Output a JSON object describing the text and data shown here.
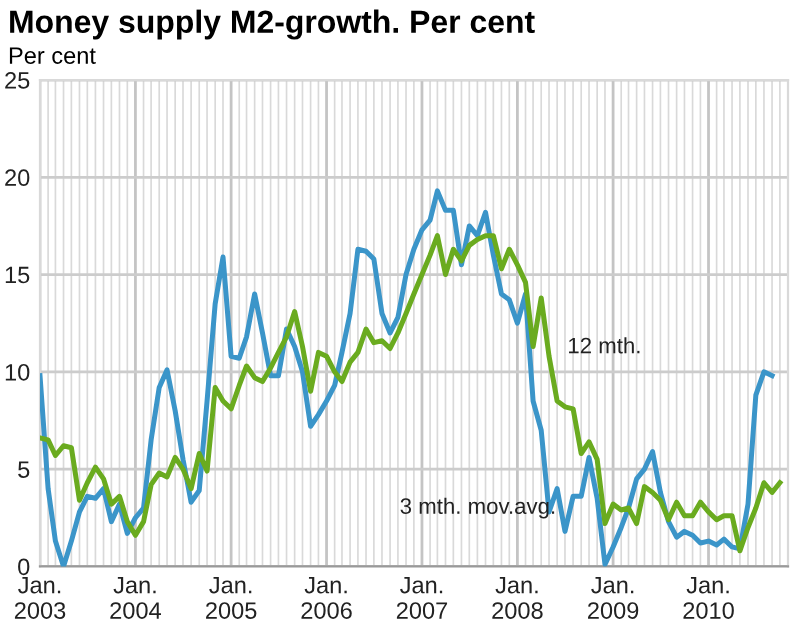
{
  "chart_data": {
    "type": "line",
    "title": "Money supply M2-growth. Per cent",
    "ylabel": "Per cent",
    "x": [
      "2003-01",
      "2003-02",
      "2003-03",
      "2003-04",
      "2003-05",
      "2003-06",
      "2003-07",
      "2003-08",
      "2003-09",
      "2003-10",
      "2003-11",
      "2003-12",
      "2004-01",
      "2004-02",
      "2004-03",
      "2004-04",
      "2004-05",
      "2004-06",
      "2004-07",
      "2004-08",
      "2004-09",
      "2004-10",
      "2004-11",
      "2004-12",
      "2005-01",
      "2005-02",
      "2005-03",
      "2005-04",
      "2005-05",
      "2005-06",
      "2005-07",
      "2005-08",
      "2005-09",
      "2005-10",
      "2005-11",
      "2005-12",
      "2006-01",
      "2006-02",
      "2006-03",
      "2006-04",
      "2006-05",
      "2006-06",
      "2006-07",
      "2006-08",
      "2006-09",
      "2006-10",
      "2006-11",
      "2006-12",
      "2007-01",
      "2007-02",
      "2007-03",
      "2007-04",
      "2007-05",
      "2007-06",
      "2007-07",
      "2007-08",
      "2007-09",
      "2007-10",
      "2007-11",
      "2007-12",
      "2008-01",
      "2008-02",
      "2008-03",
      "2008-04",
      "2008-05",
      "2008-06",
      "2008-07",
      "2008-08",
      "2008-09",
      "2008-10",
      "2008-11",
      "2008-12",
      "2009-01",
      "2009-02",
      "2009-03",
      "2009-04",
      "2009-05",
      "2009-06",
      "2009-07",
      "2009-08",
      "2009-09",
      "2009-10",
      "2009-11",
      "2009-12",
      "2010-01",
      "2010-02",
      "2010-03",
      "2010-04",
      "2010-05",
      "2010-06",
      "2010-07",
      "2010-08",
      "2010-09",
      "2010-10"
    ],
    "series": [
      {
        "name": "3 mth. mov.avg.",
        "color": "#3b95c9",
        "values": [
          9.8,
          4.0,
          1.3,
          0,
          1.3,
          2.8,
          3.6,
          3.5,
          4.0,
          2.3,
          3.2,
          1.7,
          2.5,
          3.0,
          6.5,
          9.2,
          10.1,
          8.0,
          5.5,
          3.3,
          3.9,
          8.5,
          13.5,
          15.9,
          10.8,
          10.7,
          11.8,
          14.0,
          12.0,
          9.8,
          9.8,
          12.2,
          11.3,
          10.0,
          7.2,
          7.8,
          8.5,
          9.3,
          11.0,
          13.0,
          16.3,
          16.2,
          15.8,
          13.0,
          12.0,
          12.8,
          15.0,
          16.3,
          17.3,
          17.8,
          19.3,
          18.3,
          18.3,
          15.5,
          17.5,
          17.0,
          18.2,
          16.0,
          14.0,
          13.7,
          12.5,
          14.0,
          8.5,
          7.0,
          2.8,
          4.0,
          1.8,
          3.6,
          3.6,
          5.6,
          3.5,
          0.1,
          1.0,
          2.0,
          3.0,
          4.5,
          5.0,
          5.9,
          3.8,
          2.3,
          1.5,
          1.8,
          1.6,
          1.2,
          1.3,
          1.1,
          1.4,
          1.0,
          0.9,
          3.2,
          8.8,
          10.0,
          9.8,
          null
        ]
      },
      {
        "name": "12 mth.",
        "color": "#6aab1f",
        "values": [
          6.6,
          6.5,
          5.7,
          6.2,
          6.1,
          3.4,
          4.3,
          5.1,
          4.5,
          3.2,
          3.6,
          2.3,
          1.6,
          2.3,
          4.2,
          4.8,
          4.6,
          5.6,
          5.0,
          4.0,
          5.8,
          4.9,
          9.2,
          8.5,
          8.1,
          9.3,
          10.3,
          9.7,
          9.5,
          10.2,
          11.0,
          11.8,
          13.1,
          11.3,
          9.0,
          11.0,
          10.8,
          10.0,
          9.5,
          10.5,
          11.0,
          12.2,
          11.5,
          11.6,
          11.2,
          12.0,
          13.0,
          14.0,
          15.0,
          16.0,
          17.0,
          15.0,
          16.3,
          15.7,
          16.5,
          16.8,
          17.0,
          17.0,
          15.3,
          16.3,
          15.5,
          14.6,
          11.3,
          13.8,
          10.8,
          8.5,
          8.2,
          8.1,
          5.8,
          6.4,
          5.5,
          2.2,
          3.2,
          2.9,
          3.0,
          2.2,
          4.1,
          3.8,
          3.4,
          2.4,
          3.3,
          2.6,
          2.6,
          3.3,
          2.8,
          2.4,
          2.6,
          2.6,
          0.8,
          2.0,
          3.0,
          4.3,
          3.8,
          4.3
        ]
      }
    ],
    "xlim": [
      "2003-01",
      "2010-11"
    ],
    "xticks": [
      {
        "value": "2003-01",
        "label": "Jan.\n2003"
      },
      {
        "value": "2003-02",
        "label": null
      },
      {
        "value": "2003-03",
        "label": null
      },
      {
        "value": "2003-04",
        "label": null
      },
      {
        "value": "2003-05",
        "label": null
      },
      {
        "value": "2003-06",
        "label": null
      },
      {
        "value": "2003-07",
        "label": null
      },
      {
        "value": "2003-08",
        "label": null
      },
      {
        "value": "2003-09",
        "label": null
      },
      {
        "value": "2003-10",
        "label": null
      },
      {
        "value": "2003-11",
        "label": null
      },
      {
        "value": "2003-12",
        "label": null
      },
      {
        "value": "2004-01",
        "label": "Jan.\n2004"
      },
      {
        "value": "2004-02",
        "label": null
      },
      {
        "value": "2004-03",
        "label": null
      },
      {
        "value": "2004-04",
        "label": null
      },
      {
        "value": "2004-05",
        "label": null
      },
      {
        "value": "2004-06",
        "label": null
      },
      {
        "value": "2004-07",
        "label": null
      },
      {
        "value": "2004-08",
        "label": null
      },
      {
        "value": "2004-09",
        "label": null
      },
      {
        "value": "2004-10",
        "label": null
      },
      {
        "value": "2004-11",
        "label": null
      },
      {
        "value": "2004-12",
        "label": null
      },
      {
        "value": "2005-01",
        "label": "Jan.\n2005"
      },
      {
        "value": "2005-02",
        "label": null
      },
      {
        "value": "2005-03",
        "label": null
      },
      {
        "value": "2005-04",
        "label": null
      },
      {
        "value": "2005-05",
        "label": null
      },
      {
        "value": "2005-06",
        "label": null
      },
      {
        "value": "2005-07",
        "label": null
      },
      {
        "value": "2005-08",
        "label": null
      },
      {
        "value": "2005-09",
        "label": null
      },
      {
        "value": "2005-10",
        "label": null
      },
      {
        "value": "2005-11",
        "label": null
      },
      {
        "value": "2005-12",
        "label": null
      },
      {
        "value": "2006-01",
        "label": "Jan.\n2006"
      },
      {
        "value": "2006-02",
        "label": null
      },
      {
        "value": "2006-03",
        "label": null
      },
      {
        "value": "2006-04",
        "label": null
      },
      {
        "value": "2006-05",
        "label": null
      },
      {
        "value": "2006-06",
        "label": null
      },
      {
        "value": "2006-07",
        "label": null
      },
      {
        "value": "2006-08",
        "label": null
      },
      {
        "value": "2006-09",
        "label": null
      },
      {
        "value": "2006-10",
        "label": null
      },
      {
        "value": "2006-11",
        "label": null
      },
      {
        "value": "2006-12",
        "label": null
      },
      {
        "value": "2007-01",
        "label": "Jan.\n2007"
      },
      {
        "value": "2007-02",
        "label": null
      },
      {
        "value": "2007-03",
        "label": null
      },
      {
        "value": "2007-04",
        "label": null
      },
      {
        "value": "2007-05",
        "label": null
      },
      {
        "value": "2007-06",
        "label": null
      },
      {
        "value": "2007-07",
        "label": null
      },
      {
        "value": "2007-08",
        "label": null
      },
      {
        "value": "2007-09",
        "label": null
      },
      {
        "value": "2007-10",
        "label": null
      },
      {
        "value": "2007-11",
        "label": null
      },
      {
        "value": "2007-12",
        "label": null
      },
      {
        "value": "2008-01",
        "label": "Jan.\n2008"
      },
      {
        "value": "2008-02",
        "label": null
      },
      {
        "value": "2008-03",
        "label": null
      },
      {
        "value": "2008-04",
        "label": null
      },
      {
        "value": "2008-05",
        "label": null
      },
      {
        "value": "2008-06",
        "label": null
      },
      {
        "value": "2008-07",
        "label": null
      },
      {
        "value": "2008-08",
        "label": null
      },
      {
        "value": "2008-09",
        "label": null
      },
      {
        "value": "2008-10",
        "label": null
      },
      {
        "value": "2008-11",
        "label": null
      },
      {
        "value": "2008-12",
        "label": null
      },
      {
        "value": "2009-01",
        "label": "Jan.\n2009"
      },
      {
        "value": "2009-02",
        "label": null
      },
      {
        "value": "2009-03",
        "label": null
      },
      {
        "value": "2009-04",
        "label": null
      },
      {
        "value": "2009-05",
        "label": null
      },
      {
        "value": "2009-06",
        "label": null
      },
      {
        "value": "2009-07",
        "label": null
      },
      {
        "value": "2009-08",
        "label": null
      },
      {
        "value": "2009-09",
        "label": null
      },
      {
        "value": "2009-10",
        "label": null
      },
      {
        "value": "2009-11",
        "label": null
      },
      {
        "value": "2009-12",
        "label": null
      },
      {
        "value": "2010-01",
        "label": "Jan.\n2010"
      },
      {
        "value": "2010-02",
        "label": null
      },
      {
        "value": "2010-03",
        "label": null
      },
      {
        "value": "2010-04",
        "label": null
      },
      {
        "value": "2010-05",
        "label": null
      },
      {
        "value": "2010-06",
        "label": null
      },
      {
        "value": "2010-07",
        "label": null
      },
      {
        "value": "2010-08",
        "label": null
      },
      {
        "value": "2010-09",
        "label": null
      },
      {
        "value": "2010-10",
        "label": null
      },
      {
        "value": "2010-11",
        "label": null
      }
    ],
    "ylim": [
      0,
      25
    ],
    "yticks": [
      0,
      5,
      10,
      15,
      20,
      25
    ],
    "grid": true,
    "legend": false
  }
}
